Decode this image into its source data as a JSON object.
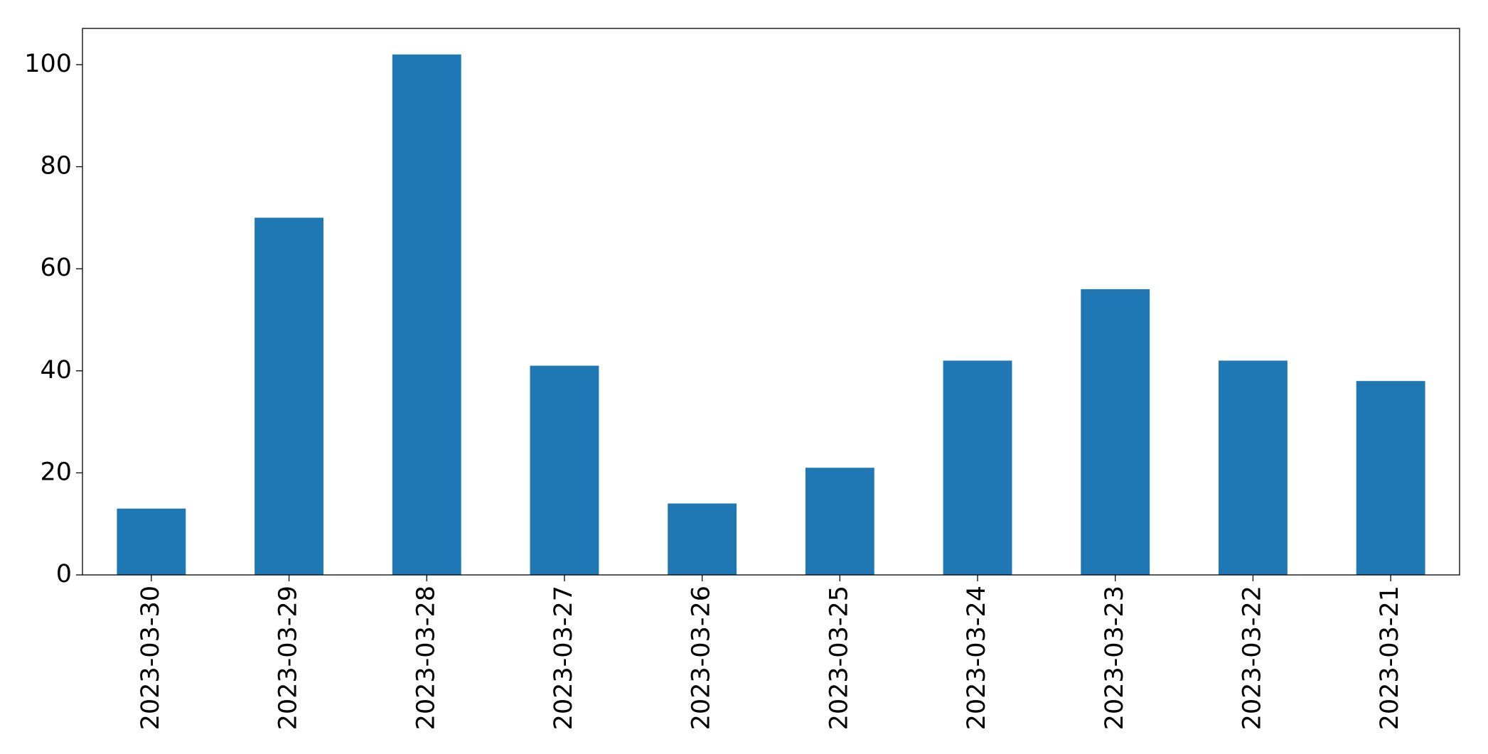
{
  "chart_data": {
    "type": "bar",
    "categories": [
      "2023-03-30",
      "2023-03-29",
      "2023-03-28",
      "2023-03-27",
      "2023-03-26",
      "2023-03-25",
      "2023-03-24",
      "2023-03-23",
      "2023-03-22",
      "2023-03-21"
    ],
    "values": [
      13,
      70,
      102,
      41,
      14,
      21,
      42,
      56,
      42,
      38
    ],
    "color": "#1f77b4",
    "ylim": [
      0,
      107.1
    ],
    "yticks": [
      0,
      20,
      40,
      60,
      80,
      100
    ],
    "grid": false
  }
}
